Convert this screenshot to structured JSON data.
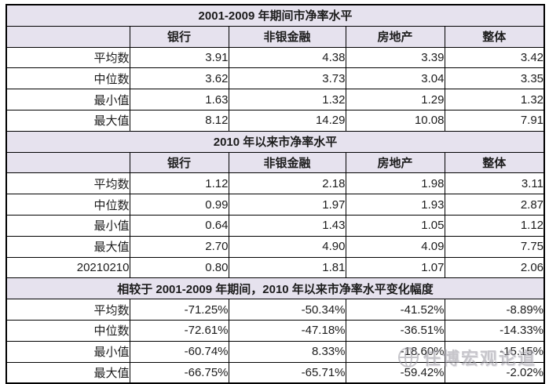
{
  "colors": {
    "header_bg": "#e6e2ee",
    "border": "#000000",
    "text": "#1c1c1c",
    "watermark": "#9a98a2"
  },
  "columns": [
    "",
    "银行",
    "非银金融",
    "房地产",
    "整体"
  ],
  "sections": [
    {
      "title": "2001-2009 年期间市净率水平",
      "show_header": true,
      "rows": [
        {
          "label": "平均数",
          "values": [
            "3.91",
            "4.38",
            "3.39",
            "3.42"
          ]
        },
        {
          "label": "中位数",
          "values": [
            "3.62",
            "3.73",
            "3.04",
            "3.35"
          ]
        },
        {
          "label": "最小值",
          "values": [
            "1.63",
            "1.32",
            "1.29",
            "1.32"
          ]
        },
        {
          "label": "最大值",
          "values": [
            "8.12",
            "14.29",
            "10.08",
            "7.91"
          ]
        }
      ]
    },
    {
      "title": "2010 年以来市净率水平",
      "show_header": true,
      "rows": [
        {
          "label": "平均数",
          "values": [
            "1.12",
            "2.18",
            "1.98",
            "3.11"
          ]
        },
        {
          "label": "中位数",
          "values": [
            "0.99",
            "1.97",
            "1.93",
            "2.87"
          ]
        },
        {
          "label": "最小值",
          "values": [
            "0.64",
            "1.43",
            "1.05",
            "1.12"
          ]
        },
        {
          "label": "最大值",
          "values": [
            "2.70",
            "4.90",
            "4.09",
            "7.75"
          ]
        },
        {
          "label": "20210210",
          "values": [
            "0.80",
            "1.81",
            "1.07",
            "2.06"
          ]
        }
      ]
    },
    {
      "title": "相较于 2001-2009 年期间，2010 年以来市净率水平变化幅度",
      "show_header": false,
      "rows": [
        {
          "label": "平均数",
          "values": [
            "-71.25%",
            "-50.34%",
            "-41.52%",
            "-8.89%"
          ]
        },
        {
          "label": "中位数",
          "values": [
            "-72.61%",
            "-47.18%",
            "-36.51%",
            "-14.33%"
          ]
        },
        {
          "label": "最小值",
          "values": [
            "-60.74%",
            "8.33%",
            "-18.60%",
            "-15.15%"
          ]
        },
        {
          "label": "最大值",
          "values": [
            "-66.75%",
            "-65.71%",
            "-59.42%",
            "-2.02%"
          ]
        }
      ]
    }
  ],
  "watermark": {
    "text": "任博宏观论道",
    "icon": "globe-icon"
  }
}
